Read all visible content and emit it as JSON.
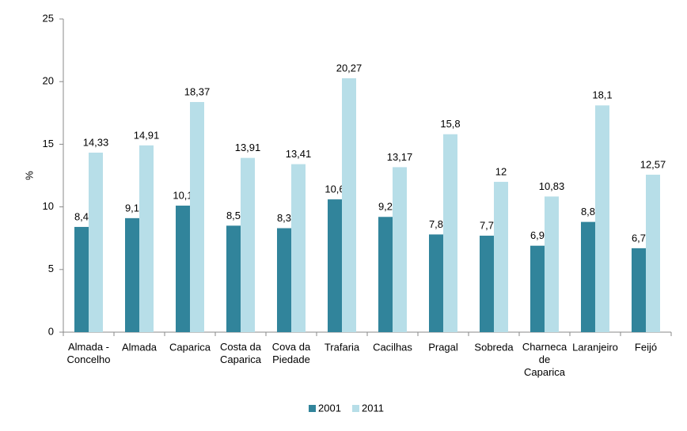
{
  "chart_data": {
    "type": "bar",
    "y_label": "%",
    "categories": [
      "Almada -\nConcelho",
      "Almada",
      "Caparica",
      "Costa da\nCaparica",
      "Cova da\nPiedade",
      "Trafaria",
      "Cacilhas",
      "Pragal",
      "Sobreda",
      "Charneca\nde\nCaparica",
      "Laranjeiro",
      "Feijó"
    ],
    "series": [
      {
        "name": "2001",
        "color": "#31849b",
        "values": [
          8.4,
          9.1,
          10.1,
          8.5,
          8.3,
          10.6,
          9.2,
          7.8,
          7.7,
          6.9,
          8.8,
          6.7
        ],
        "value_labels": [
          "8,4",
          "9,1",
          "10,1",
          "8,5",
          "8,3",
          "10,6",
          "9,2",
          "7,8",
          "7,7",
          "6,9",
          "8,8",
          "6,7"
        ]
      },
      {
        "name": "2011",
        "color": "#b7dee8",
        "values": [
          14.33,
          14.91,
          18.37,
          13.91,
          13.41,
          20.27,
          13.17,
          15.8,
          12,
          10.83,
          18.1,
          12.57
        ],
        "value_labels": [
          "14,33",
          "14,91",
          "18,37",
          "13,91",
          "13,41",
          "20,27",
          "13,17",
          "15,8",
          "12",
          "10,83",
          "18,1",
          "12,57"
        ]
      }
    ],
    "ylim": [
      0,
      25
    ],
    "yticks": [
      0,
      5,
      10,
      15,
      20,
      25
    ],
    "grid": false,
    "legend": "bottom"
  }
}
